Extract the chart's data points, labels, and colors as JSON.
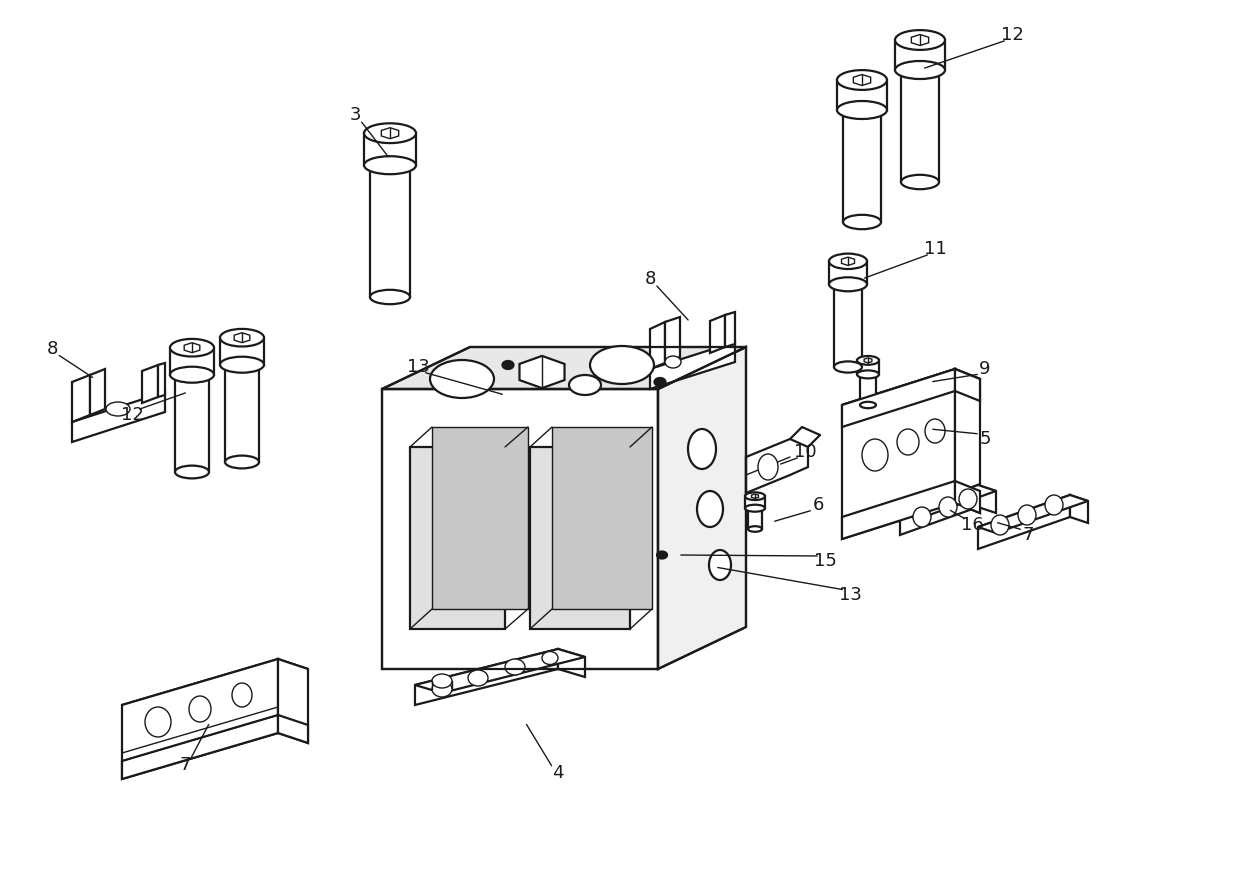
{
  "bg_color": "#ffffff",
  "line_color": "#1a1a1a",
  "lw_main": 1.6,
  "lw_thin": 1.0,
  "fig_width": 12.4,
  "fig_height": 8.77
}
